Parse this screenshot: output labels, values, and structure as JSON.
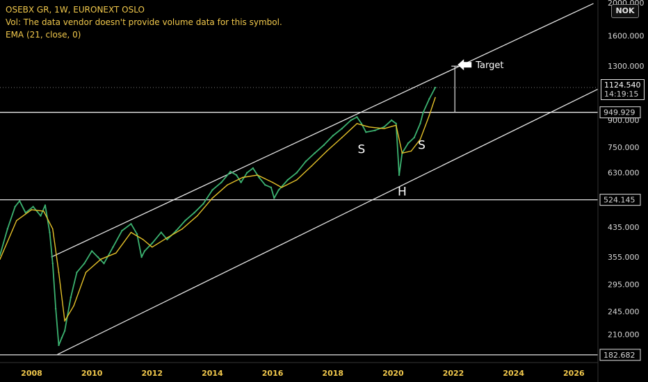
{
  "header": {
    "title": "OSEBX GR, 1W, EURONEXT OSLO",
    "volume_note": "Vol: The data vendor doesn't provide volume data for this symbol.",
    "indicator": "EMA (21, close, 0)"
  },
  "currency": "NOK",
  "colors": {
    "background": "#000000",
    "price": "#3cb371",
    "ema": "#e6c229",
    "lines": "#e6e6e6",
    "header_text": "#f2c94c"
  },
  "current": {
    "price": "1124.540",
    "countdown": "14:19:15"
  },
  "chart_data": {
    "type": "line",
    "title": "OSEBX GR, 1W, EURONEXT OSLO",
    "xlabel": "",
    "ylabel": "",
    "scale": "log",
    "xlim": [
      2006.95,
      2026.8
    ],
    "ylim": [
      175,
      2000
    ],
    "y_ticks": [
      "2000.000",
      "1600.000",
      "1300.000",
      "900.000",
      "750.000",
      "630.000",
      "435.000",
      "355.000",
      "295.000",
      "245.000",
      "210.000"
    ],
    "y_tick_values": [
      2000,
      1600,
      1300,
      900,
      750,
      630,
      435,
      355,
      295,
      245,
      210
    ],
    "x_ticks": [
      "2008",
      "2010",
      "2012",
      "2014",
      "2016",
      "2018",
      "2020",
      "2022",
      "2024",
      "2026"
    ],
    "x_tick_values": [
      2008,
      2010,
      2012,
      2014,
      2016,
      2018,
      2020,
      2022,
      2024,
      2026
    ],
    "series": [
      {
        "name": "OSEBX GR",
        "x": [
          2006.95,
          2007.2,
          2007.45,
          2007.6,
          2007.8,
          2008.05,
          2008.3,
          2008.45,
          2008.6,
          2008.7,
          2008.8,
          2008.9,
          2009.0,
          2009.1,
          2009.3,
          2009.5,
          2009.75,
          2010.0,
          2010.2,
          2010.4,
          2010.7,
          2011.0,
          2011.3,
          2011.5,
          2011.65,
          2011.75,
          2012.0,
          2012.3,
          2012.5,
          2012.8,
          2013.1,
          2013.4,
          2013.7,
          2014.0,
          2014.3,
          2014.6,
          2014.8,
          2014.95,
          2015.15,
          2015.35,
          2015.55,
          2015.75,
          2015.95,
          2016.05,
          2016.2,
          2016.5,
          2016.8,
          2017.1,
          2017.4,
          2017.7,
          2018.0,
          2018.3,
          2018.6,
          2018.8,
          2018.95,
          2019.1,
          2019.4,
          2019.7,
          2019.95,
          2020.1,
          2020.2,
          2020.3,
          2020.5,
          2020.7,
          2020.9,
          2021.0,
          2021.2,
          2021.4
        ],
        "values": [
          360,
          430,
          500,
          520,
          480,
          500,
          470,
          505,
          420,
          340,
          250,
          195,
          205,
          215,
          270,
          320,
          340,
          370,
          355,
          340,
          380,
          425,
          445,
          415,
          355,
          370,
          390,
          420,
          400,
          425,
          455,
          480,
          510,
          560,
          590,
          635,
          620,
          590,
          630,
          650,
          610,
          580,
          570,
          530,
          560,
          600,
          630,
          680,
          720,
          760,
          810,
          850,
          900,
          920,
          880,
          830,
          840,
          860,
          900,
          880,
          620,
          720,
          770,
          800,
          880,
          950,
          1040,
          1124
        ]
      },
      {
        "name": "EMA (21, close, 0)",
        "x": [
          2006.95,
          2007.5,
          2008.0,
          2008.4,
          2008.7,
          2008.9,
          2009.1,
          2009.4,
          2009.8,
          2010.3,
          2010.8,
          2011.3,
          2011.7,
          2012.0,
          2012.5,
          2013.0,
          2013.5,
          2014.0,
          2014.5,
          2015.0,
          2015.5,
          2016.0,
          2016.3,
          2016.8,
          2017.3,
          2017.8,
          2018.3,
          2018.8,
          2019.2,
          2019.7,
          2020.1,
          2020.3,
          2020.6,
          2020.9,
          2021.2,
          2021.4
        ],
        "values": [
          350,
          455,
          490,
          485,
          430,
          320,
          230,
          255,
          320,
          350,
          365,
          420,
          400,
          380,
          405,
          430,
          470,
          530,
          580,
          610,
          620,
          590,
          570,
          600,
          660,
          730,
          800,
          880,
          860,
          850,
          870,
          720,
          730,
          790,
          930,
          1050
        ]
      }
    ],
    "annotations": {
      "levels": [
        "949.929",
        "524.145",
        "182.682"
      ],
      "level_values": [
        949.929,
        524.145,
        182.682
      ],
      "pattern_labels": [
        "S",
        "H",
        "S"
      ],
      "target_label": "Target"
    }
  }
}
